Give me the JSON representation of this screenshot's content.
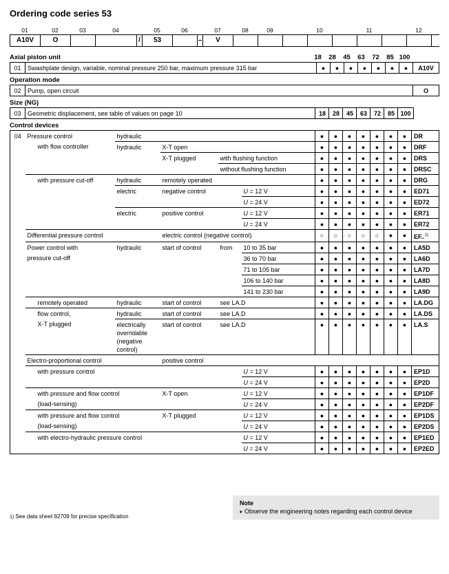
{
  "title": "Ordering code series 53",
  "posLabels": [
    "01",
    "02",
    "03",
    "04",
    "05",
    "06",
    "07",
    "08",
    "09",
    "10",
    "11",
    "12"
  ],
  "posWidths": [
    44,
    44,
    36,
    60,
    8,
    44,
    36,
    8,
    44,
    36,
    36,
    36,
    36,
    36,
    36,
    36,
    36
  ],
  "codeValues": [
    "A10V",
    "O",
    "",
    "",
    "/",
    "53",
    "",
    "–",
    "V",
    "",
    "",
    "",
    "",
    "",
    "",
    "",
    ""
  ],
  "sizes": [
    "18",
    "28",
    "45",
    "63",
    "72",
    "85",
    "100"
  ],
  "axial": {
    "heading": "Axial piston unit",
    "rowId": "01",
    "text": "Swashplate design, variable, nominal pressure 250 bar, maximum pressure 315 bar",
    "dots": [
      "●",
      "●",
      "●",
      "●",
      "●",
      "●",
      "●"
    ],
    "code": "A10V"
  },
  "opmode": {
    "heading": "Operation mode",
    "rowId": "02",
    "text": "Pump, open circuit",
    "code": "O"
  },
  "sizeNG": {
    "heading": "Size (NG)",
    "rowId": "03",
    "text": "Geometric displacement, see table of values on page 10"
  },
  "controlHeading": "Control devices",
  "controlId": "04",
  "controlRows": [
    {
      "c1": "Pressure control",
      "c2": "hydraulic",
      "c3": "",
      "c4": "",
      "c5": "",
      "dots": [
        "●",
        "●",
        "●",
        "●",
        "●",
        "●",
        "●"
      ],
      "code": "DR",
      "c1nb": true
    },
    {
      "c1": "",
      "c1i": 1,
      "c1v": "with flow controller",
      "c2": "hydraulic",
      "c3": "X-T open",
      "c4": "",
      "c5": "",
      "dots": [
        "●",
        "●",
        "●",
        "●",
        "●",
        "●",
        "●"
      ],
      "code": "DRF",
      "c1nb": true,
      "c2nb": true
    },
    {
      "c1": "",
      "c2": "",
      "c3": "X-T plugged",
      "c4": "with flushing function",
      "c5": "",
      "c4span": 2,
      "dots": [
        "●",
        "●",
        "●",
        "●",
        "●",
        "●",
        "●"
      ],
      "code": "DRS",
      "c1nb": true,
      "c2nb": true,
      "c3nb": true
    },
    {
      "c1": "",
      "c2": "",
      "c3": "",
      "c4": "without flushing function",
      "c4span": 2,
      "c5": "",
      "dots": [
        "●",
        "●",
        "●",
        "●",
        "●",
        "●",
        "●"
      ],
      "code": "DRSC"
    },
    {
      "c1": "",
      "c1i": 1,
      "c1v": "with pressure cut-off",
      "c2": "hydraulic",
      "c3": "remotely operated",
      "c3span": 3,
      "dots": [
        "●",
        "●",
        "●",
        "●",
        "●",
        "●",
        "●"
      ],
      "code": "DRG",
      "c1nb": true
    },
    {
      "c1": "",
      "c2": "electric",
      "c3": "negative control",
      "c4": "",
      "c5": "U = 12 V",
      "ital": true,
      "dots": [
        "●",
        "●",
        "●",
        "●",
        "●",
        "●",
        "●"
      ],
      "code": "ED71",
      "c1nb": true,
      "c2nb": true,
      "c3nb": true,
      "c4nb": true
    },
    {
      "c1": "",
      "c2": "",
      "c3": "",
      "c4": "",
      "c5": "U = 24 V",
      "ital": true,
      "dots": [
        "●",
        "●",
        "●",
        "●",
        "●",
        "●",
        "●"
      ],
      "code": "ED72",
      "c1nb": true
    },
    {
      "c1": "",
      "c2": "electric",
      "c3": "positive control",
      "c4": "",
      "c5": "U = 12 V",
      "ital": true,
      "dots": [
        "●",
        "●",
        "●",
        "●",
        "●",
        "●",
        "●"
      ],
      "code": "ER71",
      "c1nb": true,
      "c2nb": true,
      "c3nb": true,
      "c4nb": true
    },
    {
      "c1": "",
      "c2": "",
      "c3": "",
      "c4": "",
      "c5": "U = 24 V",
      "ital": true,
      "dots": [
        "●",
        "●",
        "●",
        "●",
        "●",
        "●",
        "●"
      ],
      "code": "ER72"
    },
    {
      "c1": "Differential pressure control",
      "c1span": 2,
      "c3": "electric control (negative control)",
      "c3span": 3,
      "dots": [
        "○",
        "○",
        "○",
        "○",
        "○",
        "●",
        "●"
      ],
      "code": "EF..",
      "sup": "1)"
    },
    {
      "c1": "Power control with",
      "c2": "hydraulic",
      "c3": "start of control",
      "c4": "from",
      "c5": "10 to 35 bar",
      "dots": [
        "●",
        "●",
        "●",
        "●",
        "●",
        "●",
        "●"
      ],
      "code": "LA5D",
      "c1nb": true,
      "c2nb": true,
      "c3nb": true,
      "c4nb": true
    },
    {
      "c1": "pressure cut-off",
      "c2": "",
      "c3": "",
      "c4": "",
      "c5": "36 to 70 bar",
      "dots": [
        "●",
        "●",
        "●",
        "●",
        "●",
        "●",
        "●"
      ],
      "code": "LA6D",
      "c1nb": true,
      "c2nb": true,
      "c3nb": true,
      "c4nb": true
    },
    {
      "c1": "",
      "c2": "",
      "c3": "",
      "c4": "",
      "c5": "71 to 105 bar",
      "dots": [
        "●",
        "●",
        "●",
        "●",
        "●",
        "●",
        "●"
      ],
      "code": "LA7D",
      "c1nb": true,
      "c2nb": true,
      "c3nb": true,
      "c4nb": true
    },
    {
      "c1": "",
      "c2": "",
      "c3": "",
      "c4": "",
      "c5": "106 to 140 bar",
      "dots": [
        "●",
        "●",
        "●",
        "●",
        "●",
        "●",
        "●"
      ],
      "code": "LA8D",
      "c1nb": true,
      "c2nb": true,
      "c3nb": true,
      "c4nb": true
    },
    {
      "c1": "",
      "c2": "",
      "c3": "",
      "c4": "",
      "c5": "141 to 230 bar",
      "dots": [
        "●",
        "●",
        "●",
        "●",
        "●",
        "●",
        "●"
      ],
      "code": "LA9D"
    },
    {
      "c1": "",
      "c1i": 1,
      "c1v": "remotely operated",
      "c2": "hydraulic",
      "c3": "start of control",
      "c4": "see LA.D",
      "c4span": 2,
      "dots": [
        "●",
        "●",
        "●",
        "●",
        "●",
        "●",
        "●"
      ],
      "code": "LA.DG"
    },
    {
      "c1": "",
      "c1i": 1,
      "c1v": "flow control,",
      "c2": "hydraulic",
      "c3": "start of control",
      "c4": "see LA.D",
      "c4span": 2,
      "dots": [
        "●",
        "●",
        "●",
        "●",
        "●",
        "●",
        "●"
      ],
      "code": "LA.DS",
      "c1nb": true
    },
    {
      "c1": "",
      "c1i": 1,
      "c1v": "X-T plugged",
      "c2": "electrically overridable (negative control)",
      "c3": "start of control",
      "c4": "see LA.D",
      "c4span": 2,
      "dots": [
        "●",
        "●",
        "●",
        "●",
        "●",
        "●",
        "●"
      ],
      "code": "LA.S",
      "tall": true
    },
    {
      "c1": "Electro-proportional control",
      "c1span": 2,
      "c3": "positive control",
      "c3span": 3,
      "dots": [
        "",
        "",
        "",
        "",
        "",
        "",
        ""
      ],
      "code": "",
      "noCodeBorder": true,
      "noDotsBorder": true
    },
    {
      "c1": "",
      "c1i": 1,
      "c1v": "with pressure control",
      "c1span": 3,
      "c4": "",
      "c5": "U = 12 V",
      "ital": true,
      "dots": [
        "●",
        "●",
        "●",
        "●",
        "●",
        "●",
        "●"
      ],
      "code": "EP1D",
      "c1nb": true,
      "c4nb": true
    },
    {
      "c1": "",
      "c1span": 3,
      "c4": "",
      "c5": "U = 24 V",
      "ital": true,
      "dots": [
        "●",
        "●",
        "●",
        "●",
        "●",
        "●",
        "●"
      ],
      "code": "EP2D"
    },
    {
      "c1": "",
      "c1i": 1,
      "c1v": "with pressure and flow control",
      "c1span": 2,
      "c3": "X-T open",
      "c4": "",
      "c5": "U = 12 V",
      "ital": true,
      "dots": [
        "●",
        "●",
        "●",
        "●",
        "●",
        "●",
        "●"
      ],
      "code": "EP1DF",
      "c1nb": true,
      "c3nb": true,
      "c4nb": true
    },
    {
      "c1": "",
      "c1i": 1,
      "c1v": "(load-sensing)",
      "c1span": 2,
      "c3": "",
      "c4": "",
      "c5": "U = 24 V",
      "ital": true,
      "dots": [
        "●",
        "●",
        "●",
        "●",
        "●",
        "●",
        "●"
      ],
      "code": "EP2DF"
    },
    {
      "c1": "",
      "c1i": 1,
      "c1v": "with pressure and flow control",
      "c1span": 2,
      "c3": "X-T plugged",
      "c4": "",
      "c5": "U = 12 V",
      "ital": true,
      "dots": [
        "●",
        "●",
        "●",
        "●",
        "●",
        "●",
        "●"
      ],
      "code": "EP1DS",
      "c1nb": true,
      "c3nb": true,
      "c4nb": true
    },
    {
      "c1": "",
      "c1i": 1,
      "c1v": "(load-sensing)",
      "c1span": 2,
      "c3": "",
      "c4": "",
      "c5": "U = 24 V",
      "ital": true,
      "dots": [
        "●",
        "●",
        "●",
        "●",
        "●",
        "●",
        "●"
      ],
      "code": "EP2DS"
    },
    {
      "c1": "",
      "c1i": 1,
      "c1v": "with electro-hydraulic pressure control",
      "c1span": 3,
      "c4": "",
      "c5": "U = 12 V",
      "ital": true,
      "dots": [
        "●",
        "●",
        "●",
        "●",
        "●",
        "●",
        "●"
      ],
      "code": "EP1ED",
      "c1nb": true,
      "c4nb": true
    },
    {
      "c1": "",
      "c1span": 3,
      "c4": "",
      "c5": "U = 24 V",
      "ital": true,
      "dots": [
        "●",
        "●",
        "●",
        "●",
        "●",
        "●",
        "●"
      ],
      "code": "EP2ED",
      "last": true
    }
  ],
  "note": {
    "heading": "Note",
    "bullet": "▸",
    "text": "Observe the engineering notes regarding each control device"
  },
  "footnote": {
    "num": "1)",
    "text": "See data sheet 92709 for precise specification"
  }
}
